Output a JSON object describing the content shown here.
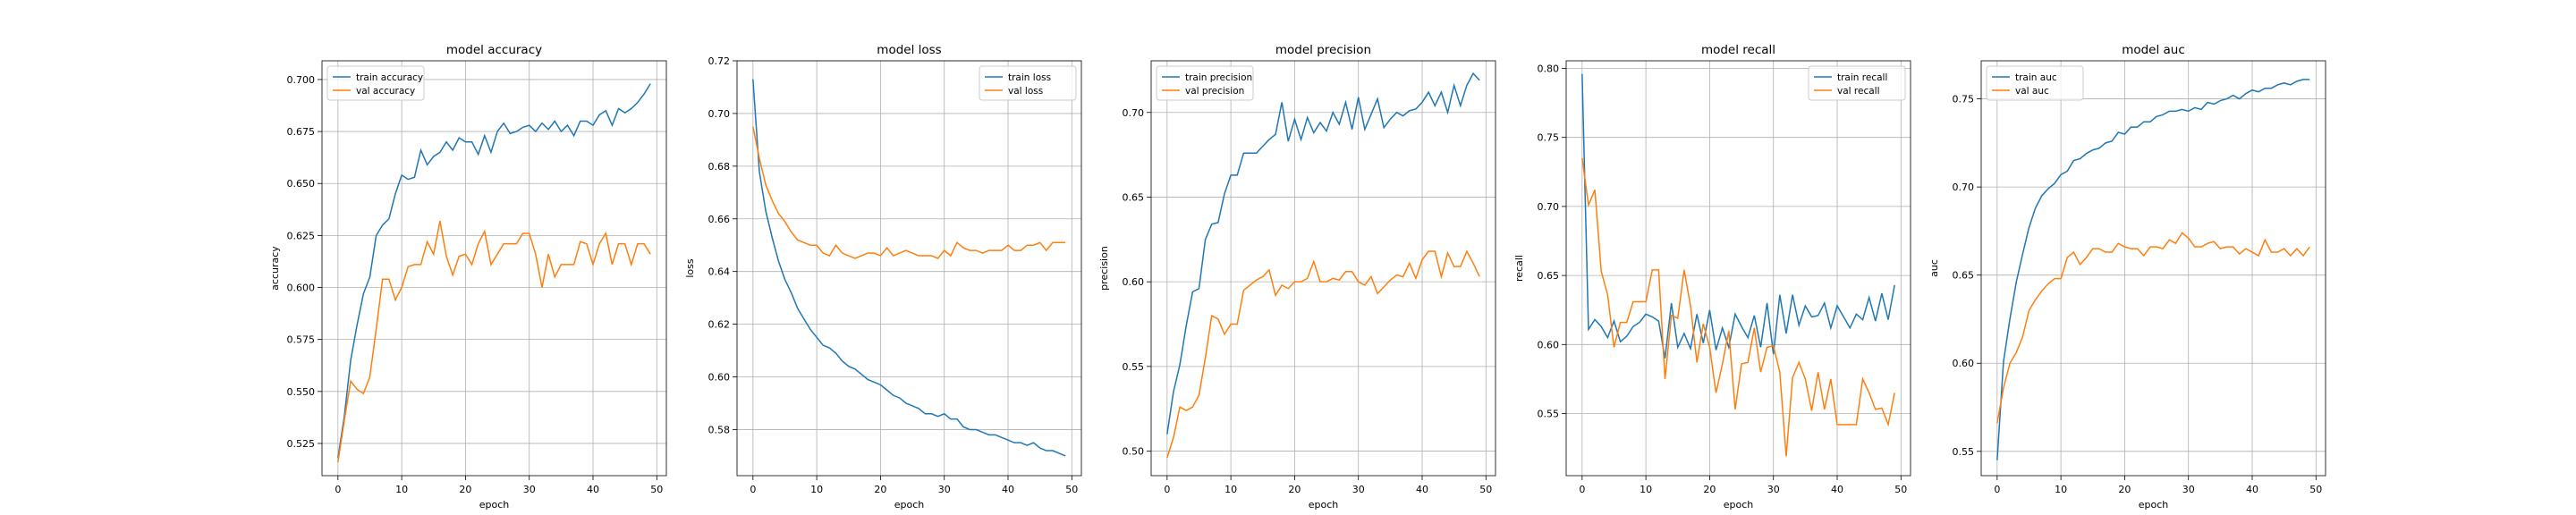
{
  "colors": {
    "train": "#1f77b4",
    "val": "#ff7f0e",
    "grid": "#b0b0b0"
  },
  "chart_data": [
    {
      "type": "line",
      "title": "model accuracy",
      "xlabel": "epoch",
      "ylabel": "accuracy",
      "xlim": [
        -2.5,
        51.5
      ],
      "ylim": [
        0.5095,
        0.709
      ],
      "xticks": [
        0,
        10,
        20,
        30,
        40,
        50
      ],
      "yticks": [
        0.525,
        0.55,
        0.575,
        0.6,
        0.625,
        0.65,
        0.675,
        0.7
      ],
      "ytick_labels": [
        "0.525",
        "0.550",
        "0.575",
        "0.600",
        "0.625",
        "0.650",
        "0.675",
        "0.700"
      ],
      "grid": true,
      "legend": "upper-left",
      "series": [
        {
          "name": "train accuracy",
          "color": "#1f77b4",
          "values": [
            0.518,
            0.538,
            0.565,
            0.582,
            0.597,
            0.605,
            0.625,
            0.63,
            0.633,
            0.645,
            0.654,
            0.652,
            0.653,
            0.666,
            0.659,
            0.663,
            0.665,
            0.67,
            0.666,
            0.672,
            0.67,
            0.67,
            0.664,
            0.673,
            0.665,
            0.675,
            0.679,
            0.674,
            0.675,
            0.677,
            0.678,
            0.675,
            0.679,
            0.676,
            0.68,
            0.675,
            0.678,
            0.673,
            0.68,
            0.68,
            0.678,
            0.683,
            0.685,
            0.678,
            0.686,
            0.684,
            0.686,
            0.689,
            0.693,
            0.698
          ]
        },
        {
          "name": "val accuracy",
          "color": "#ff7f0e",
          "values": [
            0.516,
            0.536,
            0.555,
            0.551,
            0.549,
            0.557,
            0.58,
            0.604,
            0.604,
            0.594,
            0.6,
            0.61,
            0.611,
            0.611,
            0.622,
            0.616,
            0.632,
            0.615,
            0.606,
            0.615,
            0.616,
            0.611,
            0.621,
            0.627,
            0.611,
            0.616,
            0.621,
            0.621,
            0.621,
            0.626,
            0.626,
            0.616,
            0.6,
            0.616,
            0.605,
            0.611,
            0.611,
            0.611,
            0.622,
            0.621,
            0.611,
            0.621,
            0.626,
            0.611,
            0.621,
            0.621,
            0.611,
            0.621,
            0.621,
            0.616
          ]
        }
      ]
    },
    {
      "type": "line",
      "title": "model loss",
      "xlabel": "epoch",
      "ylabel": "loss",
      "xlim": [
        -2.5,
        51.5
      ],
      "ylim": [
        0.5625,
        0.72
      ],
      "xticks": [
        0,
        10,
        20,
        30,
        40,
        50
      ],
      "yticks": [
        0.58,
        0.6,
        0.62,
        0.64,
        0.66,
        0.68,
        0.7,
        0.72
      ],
      "ytick_labels": [
        "0.58",
        "0.60",
        "0.62",
        "0.64",
        "0.66",
        "0.68",
        "0.70",
        "0.72"
      ],
      "grid": true,
      "legend": "upper-right",
      "series": [
        {
          "name": "train loss",
          "color": "#1f77b4",
          "values": [
            0.713,
            0.678,
            0.663,
            0.653,
            0.644,
            0.637,
            0.632,
            0.626,
            0.622,
            0.618,
            0.615,
            0.612,
            0.611,
            0.609,
            0.606,
            0.604,
            0.603,
            0.601,
            0.599,
            0.598,
            0.597,
            0.595,
            0.593,
            0.592,
            0.59,
            0.589,
            0.588,
            0.586,
            0.586,
            0.585,
            0.586,
            0.584,
            0.584,
            0.581,
            0.58,
            0.58,
            0.579,
            0.578,
            0.578,
            0.577,
            0.576,
            0.575,
            0.575,
            0.574,
            0.575,
            0.573,
            0.572,
            0.572,
            0.571,
            0.57
          ]
        },
        {
          "name": "val loss",
          "color": "#ff7f0e",
          "values": [
            0.695,
            0.683,
            0.673,
            0.667,
            0.662,
            0.659,
            0.655,
            0.652,
            0.651,
            0.65,
            0.65,
            0.647,
            0.646,
            0.65,
            0.647,
            0.646,
            0.645,
            0.646,
            0.647,
            0.647,
            0.646,
            0.649,
            0.646,
            0.647,
            0.648,
            0.647,
            0.646,
            0.646,
            0.646,
            0.645,
            0.648,
            0.646,
            0.651,
            0.649,
            0.648,
            0.648,
            0.647,
            0.648,
            0.648,
            0.648,
            0.65,
            0.648,
            0.648,
            0.65,
            0.65,
            0.651,
            0.648,
            0.651,
            0.651,
            0.651
          ]
        }
      ]
    },
    {
      "type": "line",
      "title": "model precision",
      "xlabel": "epoch",
      "ylabel": "precision",
      "xlim": [
        -2.5,
        51.5
      ],
      "ylim": [
        0.4855,
        0.7305
      ],
      "xticks": [
        0,
        10,
        20,
        30,
        40,
        50
      ],
      "yticks": [
        0.5,
        0.55,
        0.6,
        0.65,
        0.7
      ],
      "ytick_labels": [
        "0.50",
        "0.55",
        "0.60",
        "0.65",
        "0.70"
      ],
      "grid": true,
      "legend": "upper-left",
      "series": [
        {
          "name": "train precision",
          "color": "#1f77b4",
          "values": [
            0.51,
            0.535,
            0.551,
            0.574,
            0.594,
            0.596,
            0.625,
            0.634,
            0.635,
            0.652,
            0.663,
            0.663,
            0.676,
            0.676,
            0.676,
            0.68,
            0.684,
            0.687,
            0.706,
            0.683,
            0.696,
            0.684,
            0.697,
            0.688,
            0.694,
            0.689,
            0.7,
            0.693,
            0.706,
            0.69,
            0.709,
            0.69,
            0.699,
            0.708,
            0.691,
            0.696,
            0.7,
            0.698,
            0.701,
            0.702,
            0.706,
            0.712,
            0.704,
            0.712,
            0.7,
            0.716,
            0.704,
            0.716,
            0.723,
            0.719
          ]
        },
        {
          "name": "val precision",
          "color": "#ff7f0e",
          "values": [
            0.496,
            0.508,
            0.526,
            0.524,
            0.526,
            0.533,
            0.555,
            0.58,
            0.578,
            0.569,
            0.575,
            0.575,
            0.595,
            0.598,
            0.601,
            0.603,
            0.607,
            0.592,
            0.598,
            0.596,
            0.6,
            0.6,
            0.602,
            0.612,
            0.6,
            0.6,
            0.602,
            0.601,
            0.606,
            0.606,
            0.6,
            0.598,
            0.603,
            0.593,
            0.597,
            0.601,
            0.604,
            0.603,
            0.611,
            0.602,
            0.613,
            0.618,
            0.618,
            0.603,
            0.617,
            0.609,
            0.609,
            0.618,
            0.611,
            0.603
          ]
        }
      ]
    },
    {
      "type": "line",
      "title": "model recall",
      "xlabel": "epoch",
      "ylabel": "recall",
      "xlim": [
        -2.5,
        51.5
      ],
      "ylim": [
        0.505,
        0.8055
      ],
      "xticks": [
        0,
        10,
        20,
        30,
        40,
        50
      ],
      "yticks": [
        0.55,
        0.6,
        0.65,
        0.7,
        0.75,
        0.8
      ],
      "ytick_labels": [
        "0.55",
        "0.60",
        "0.65",
        "0.70",
        "0.75",
        "0.80"
      ],
      "grid": true,
      "legend": "upper-right",
      "series": [
        {
          "name": "train recall",
          "color": "#1f77b4",
          "values": [
            0.796,
            0.611,
            0.618,
            0.613,
            0.605,
            0.617,
            0.602,
            0.606,
            0.613,
            0.616,
            0.622,
            0.62,
            0.617,
            0.59,
            0.63,
            0.598,
            0.608,
            0.597,
            0.622,
            0.601,
            0.625,
            0.596,
            0.612,
            0.598,
            0.622,
            0.613,
            0.605,
            0.621,
            0.598,
            0.63,
            0.593,
            0.636,
            0.608,
            0.636,
            0.614,
            0.628,
            0.62,
            0.621,
            0.63,
            0.612,
            0.628,
            0.62,
            0.612,
            0.622,
            0.618,
            0.634,
            0.617,
            0.637,
            0.618,
            0.643
          ]
        },
        {
          "name": "val recall",
          "color": "#ff7f0e",
          "values": [
            0.735,
            0.701,
            0.712,
            0.653,
            0.636,
            0.598,
            0.616,
            0.616,
            0.631,
            0.631,
            0.631,
            0.654,
            0.654,
            0.575,
            0.621,
            0.619,
            0.654,
            0.628,
            0.587,
            0.615,
            0.598,
            0.565,
            0.586,
            0.61,
            0.553,
            0.586,
            0.587,
            0.612,
            0.58,
            0.598,
            0.599,
            0.58,
            0.519,
            0.576,
            0.587,
            0.575,
            0.552,
            0.58,
            0.553,
            0.575,
            0.542,
            0.542,
            0.542,
            0.542,
            0.575,
            0.565,
            0.553,
            0.554,
            0.542,
            0.565
          ]
        }
      ]
    },
    {
      "type": "line",
      "title": "model auc",
      "xlabel": "epoch",
      "ylabel": "auc",
      "xlim": [
        -2.5,
        51.5
      ],
      "ylim": [
        0.5362,
        0.7716
      ],
      "xticks": [
        0,
        10,
        20,
        30,
        40,
        50
      ],
      "yticks": [
        0.55,
        0.6,
        0.65,
        0.7,
        0.75
      ],
      "ytick_labels": [
        "0.55",
        "0.60",
        "0.65",
        "0.70",
        "0.75"
      ],
      "grid": true,
      "legend": "upper-left",
      "series": [
        {
          "name": "train auc",
          "color": "#1f77b4",
          "values": [
            0.545,
            0.601,
            0.625,
            0.646,
            0.662,
            0.677,
            0.688,
            0.695,
            0.699,
            0.702,
            0.707,
            0.709,
            0.715,
            0.716,
            0.719,
            0.721,
            0.722,
            0.725,
            0.726,
            0.731,
            0.73,
            0.734,
            0.734,
            0.737,
            0.737,
            0.74,
            0.741,
            0.743,
            0.743,
            0.744,
            0.743,
            0.745,
            0.744,
            0.748,
            0.747,
            0.749,
            0.75,
            0.752,
            0.75,
            0.753,
            0.755,
            0.754,
            0.756,
            0.756,
            0.758,
            0.759,
            0.758,
            0.76,
            0.761,
            0.761
          ]
        },
        {
          "name": "val auc",
          "color": "#ff7f0e",
          "values": [
            0.566,
            0.586,
            0.6,
            0.606,
            0.615,
            0.63,
            0.636,
            0.641,
            0.645,
            0.648,
            0.648,
            0.66,
            0.663,
            0.656,
            0.66,
            0.665,
            0.665,
            0.663,
            0.663,
            0.668,
            0.666,
            0.665,
            0.665,
            0.661,
            0.666,
            0.666,
            0.665,
            0.67,
            0.668,
            0.674,
            0.671,
            0.666,
            0.666,
            0.668,
            0.669,
            0.665,
            0.666,
            0.666,
            0.662,
            0.665,
            0.663,
            0.661,
            0.67,
            0.663,
            0.663,
            0.665,
            0.661,
            0.665,
            0.661,
            0.666
          ]
        }
      ]
    }
  ]
}
